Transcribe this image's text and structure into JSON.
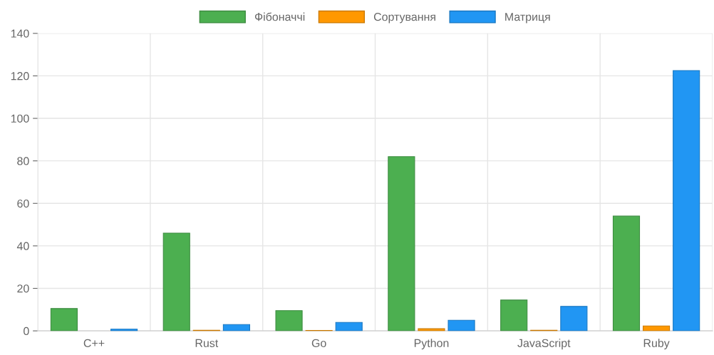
{
  "chart_data": {
    "type": "bar",
    "categories": [
      "C++",
      "Rust",
      "Go",
      "Python",
      "JavaScript",
      "Ruby"
    ],
    "series": [
      {
        "name": "Фібоначчі",
        "color": "#4caf50",
        "values": [
          10.5,
          46,
          9.5,
          82,
          14.5,
          54
        ]
      },
      {
        "name": "Сортування",
        "color": "#ff9800",
        "values": [
          null,
          0.3,
          0.2,
          1,
          0.3,
          2.3
        ]
      },
      {
        "name": "Матриця",
        "color": "#2196f3",
        "values": [
          0.8,
          3,
          4,
          5,
          11.5,
          122.5
        ]
      }
    ],
    "ylim": [
      0,
      140
    ],
    "yticks": [
      0,
      20,
      40,
      60,
      80,
      100,
      120,
      140
    ],
    "grid": true,
    "legend": "top"
  }
}
